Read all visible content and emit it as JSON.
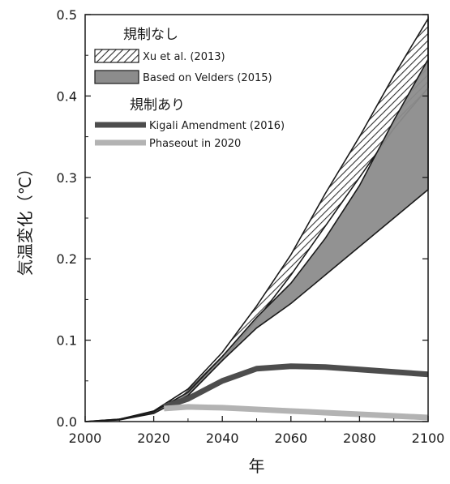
{
  "chart_data": {
    "type": "area",
    "xlabel": "年",
    "ylabel": "気温変化（℃）",
    "xlim": [
      2000,
      2100
    ],
    "ylim": [
      0,
      0.5
    ],
    "x_ticks": [
      "2000",
      "2020",
      "2040",
      "2060",
      "2080",
      "2100"
    ],
    "y_ticks": [
      "0.0",
      "0.1",
      "0.2",
      "0.3",
      "0.4",
      "0.5"
    ],
    "grid": false,
    "legend_placement": "top-left",
    "legend_groups": [
      {
        "heading": "規制なし",
        "entries": [
          {
            "label": "Xu et al. (2013)",
            "style": "hatched"
          },
          {
            "label": "Based on Velders (2015)",
            "style": "gray-fill"
          }
        ]
      },
      {
        "heading": "規制あり",
        "entries": [
          {
            "label": "Kigali Amendment (2016)",
            "style": "dark-line"
          },
          {
            "label": "Phaseout in 2020",
            "style": "light-line"
          }
        ]
      }
    ],
    "series": [
      {
        "name": "Xu et al. (2013)",
        "kind": "band",
        "color": "#ffffff",
        "hatch": "#333333",
        "x": [
          2000,
          2010,
          2020,
          2030,
          2040,
          2050,
          2060,
          2070,
          2080,
          2090,
          2100
        ],
        "lower": [
          0,
          0.003,
          0.012,
          0.035,
          0.075,
          0.125,
          0.18,
          0.24,
          0.3,
          0.36,
          0.41
        ],
        "upper": [
          0,
          0.003,
          0.013,
          0.04,
          0.085,
          0.142,
          0.205,
          0.28,
          0.35,
          0.425,
          0.495
        ]
      },
      {
        "name": "Based on Velders (2015)",
        "kind": "band",
        "color": "#8c8c8c",
        "x": [
          2000,
          2010,
          2020,
          2030,
          2040,
          2050,
          2060,
          2070,
          2080,
          2090,
          2100
        ],
        "lower": [
          0,
          0.002,
          0.01,
          0.032,
          0.075,
          0.115,
          0.145,
          0.18,
          0.215,
          0.25,
          0.285
        ],
        "upper": [
          0,
          0.003,
          0.012,
          0.036,
          0.08,
          0.128,
          0.17,
          0.225,
          0.29,
          0.37,
          0.445
        ]
      },
      {
        "name": "Kigali Amendment (2016)",
        "kind": "line",
        "color": "#4d4d4d",
        "x": [
          2023,
          2030,
          2040,
          2050,
          2060,
          2070,
          2080,
          2090,
          2100
        ],
        "y": [
          0.018,
          0.028,
          0.05,
          0.065,
          0.068,
          0.067,
          0.064,
          0.061,
          0.058
        ]
      },
      {
        "name": "Phaseout in 2020",
        "kind": "line",
        "color": "#b3b3b3",
        "x": [
          2023,
          2030,
          2040,
          2050,
          2060,
          2070,
          2080,
          2090,
          2100
        ],
        "y": [
          0.016,
          0.018,
          0.017,
          0.015,
          0.013,
          0.011,
          0.009,
          0.007,
          0.005
        ]
      }
    ]
  }
}
